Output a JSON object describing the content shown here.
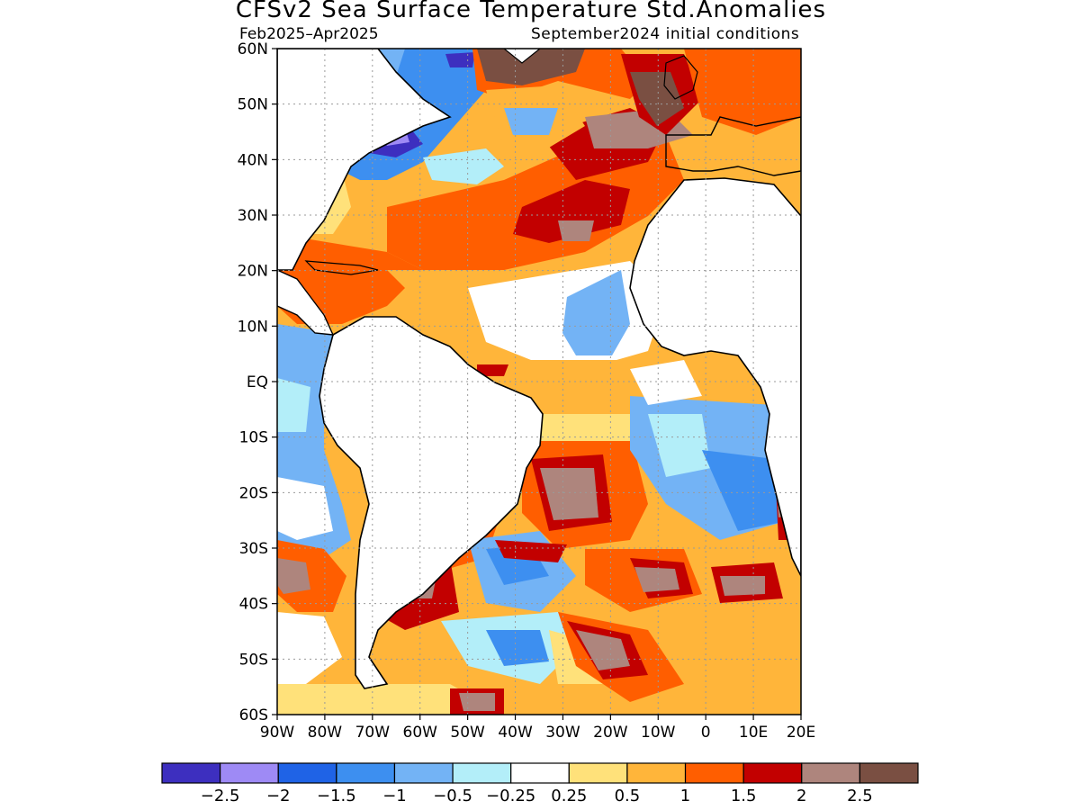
{
  "header": {
    "title": "CFSv2 Sea Surface Temperature Std.Anomalies",
    "period": "Feb2025–Apr2025",
    "init": "September2024 initial conditions"
  },
  "axes": {
    "lat_labels": [
      "60N",
      "50N",
      "40N",
      "30N",
      "20N",
      "10N",
      "EQ",
      "10S",
      "20S",
      "30S",
      "40S",
      "50S",
      "60S"
    ],
    "lon_labels": [
      "90W",
      "80W",
      "70W",
      "60W",
      "50W",
      "40W",
      "30W",
      "20W",
      "10W",
      "0",
      "10E",
      "20E"
    ],
    "lat_range": [
      -60,
      60
    ],
    "lon_range": [
      -90,
      20
    ],
    "grid": "dotted"
  },
  "colorbar": {
    "colors": [
      "#3d2fbf",
      "#9e8af5",
      "#1f63e6",
      "#3d8ff0",
      "#73b3f5",
      "#b3eef9",
      "#ffffff",
      "#ffe17a",
      "#ffb53a",
      "#ff5e00",
      "#c20000",
      "#ae857d",
      "#7a4f42"
    ],
    "labels": [
      "−2.5",
      "−2",
      "−1.5",
      "−1",
      "−0.5",
      "−0.25",
      "0.25",
      "0.5",
      "1",
      "1.5",
      "2",
      "2.5"
    ]
  }
}
